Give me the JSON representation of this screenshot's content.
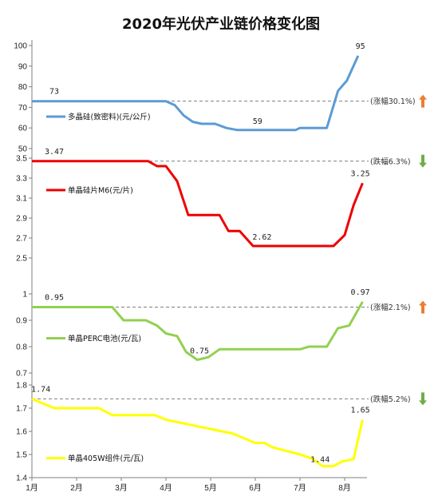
{
  "title": "2020年光伏产业链价格变化图",
  "chart_data": {
    "type": "line",
    "title": "2020年光伏产业链价格变化图",
    "x_ticks": [
      "1月",
      "2月",
      "3月",
      "4月",
      "5月",
      "6月",
      "7月",
      "8月"
    ],
    "x_range": [
      1,
      8.5
    ],
    "panels": [
      {
        "name": "多晶硅(致密料)(元/公斤)",
        "color": "#5b9bd5",
        "ylim": [
          50,
          100
        ],
        "yticks": [
          50,
          60,
          70,
          80,
          90,
          100
        ],
        "ref_value": 73,
        "annotation": "(涨幅30.1%)",
        "direction": "up",
        "labels": [
          {
            "text": "73",
            "x": 1.5,
            "y": 73
          },
          {
            "text": "59",
            "x": 6.05,
            "y": 59
          },
          {
            "text": "95",
            "x": 8.35,
            "y": 95
          }
        ],
        "points": [
          [
            1,
            73
          ],
          [
            1.5,
            73
          ],
          [
            2,
            73
          ],
          [
            2.5,
            73
          ],
          [
            3,
            73
          ],
          [
            3.5,
            73
          ],
          [
            4,
            73
          ],
          [
            4.2,
            71
          ],
          [
            4.4,
            66
          ],
          [
            4.6,
            63
          ],
          [
            4.8,
            62
          ],
          [
            5.1,
            62
          ],
          [
            5.35,
            60
          ],
          [
            5.6,
            59
          ],
          [
            6,
            59
          ],
          [
            6.5,
            59
          ],
          [
            6.9,
            59
          ],
          [
            7,
            60
          ],
          [
            7.3,
            60
          ],
          [
            7.6,
            60
          ],
          [
            7.85,
            78
          ],
          [
            8.05,
            83
          ],
          [
            8.3,
            95
          ]
        ]
      },
      {
        "name": "单晶硅片M6(元/片)",
        "color": "#ee0000",
        "ylim": [
          2.5,
          3.5
        ],
        "yticks": [
          2.5,
          2.7,
          2.9,
          3.1,
          3.3,
          3.5
        ],
        "ref_value": 3.47,
        "annotation": "(跌幅6.3%)",
        "direction": "down",
        "labels": [
          {
            "text": "3.47",
            "x": 1.5,
            "y": 3.47
          },
          {
            "text": "2.62",
            "x": 6.15,
            "y": 2.62
          },
          {
            "text": "3.25",
            "x": 8.35,
            "y": 3.25
          }
        ],
        "points": [
          [
            1,
            3.47
          ],
          [
            1.5,
            3.47
          ],
          [
            2.5,
            3.47
          ],
          [
            3.6,
            3.47
          ],
          [
            3.8,
            3.42
          ],
          [
            4,
            3.42
          ],
          [
            4.25,
            3.27
          ],
          [
            4.5,
            2.93
          ],
          [
            5.2,
            2.93
          ],
          [
            5.4,
            2.77
          ],
          [
            5.65,
            2.77
          ],
          [
            5.95,
            2.62
          ],
          [
            6.5,
            2.62
          ],
          [
            7,
            2.62
          ],
          [
            7.5,
            2.62
          ],
          [
            7.75,
            2.62
          ],
          [
            8,
            2.73
          ],
          [
            8.2,
            3.03
          ],
          [
            8.4,
            3.25
          ]
        ]
      },
      {
        "name": "单晶PERC电池(元/瓦)",
        "color": "#92d050",
        "ylim": [
          0.7,
          1.0
        ],
        "yticks": [
          0.7,
          0.8,
          0.9,
          1.0
        ],
        "ref_value": 0.95,
        "annotation": "(涨幅2.1%)",
        "direction": "up",
        "labels": [
          {
            "text": "0.95",
            "x": 1.5,
            "y": 0.95
          },
          {
            "text": "0.75",
            "x": 4.75,
            "y": 0.75
          },
          {
            "text": "0.97",
            "x": 8.35,
            "y": 0.97
          }
        ],
        "points": [
          [
            1,
            0.95
          ],
          [
            2,
            0.95
          ],
          [
            2.8,
            0.95
          ],
          [
            3.05,
            0.9
          ],
          [
            3.25,
            0.9
          ],
          [
            3.55,
            0.9
          ],
          [
            3.8,
            0.88
          ],
          [
            4,
            0.85
          ],
          [
            4.25,
            0.84
          ],
          [
            4.45,
            0.78
          ],
          [
            4.7,
            0.75
          ],
          [
            4.95,
            0.76
          ],
          [
            5.2,
            0.79
          ],
          [
            6,
            0.79
          ],
          [
            6.5,
            0.79
          ],
          [
            7,
            0.79
          ],
          [
            7.2,
            0.8
          ],
          [
            7.6,
            0.8
          ],
          [
            7.85,
            0.87
          ],
          [
            8.1,
            0.88
          ],
          [
            8.4,
            0.97
          ]
        ]
      },
      {
        "name": "单晶405W组件(元/瓦)",
        "color": "#ffff00",
        "ylim": [
          1.4,
          1.8
        ],
        "yticks": [
          1.4,
          1.5,
          1.6,
          1.7,
          1.8
        ],
        "ref_value": 1.74,
        "annotation": "(跌幅5.2%)",
        "direction": "down",
        "labels": [
          {
            "text": "1.74",
            "x": 1.2,
            "y": 1.74
          },
          {
            "text": "1.44",
            "x": 7.45,
            "y": 1.44
          },
          {
            "text": "1.65",
            "x": 8.35,
            "y": 1.65
          }
        ],
        "points": [
          [
            1,
            1.74
          ],
          [
            1.25,
            1.72
          ],
          [
            1.5,
            1.7
          ],
          [
            2,
            1.7
          ],
          [
            2.5,
            1.7
          ],
          [
            2.8,
            1.67
          ],
          [
            3.2,
            1.67
          ],
          [
            3.5,
            1.67
          ],
          [
            3.75,
            1.67
          ],
          [
            4,
            1.65
          ],
          [
            4.5,
            1.63
          ],
          [
            5,
            1.61
          ],
          [
            5.5,
            1.59
          ],
          [
            5.75,
            1.57
          ],
          [
            6,
            1.55
          ],
          [
            6.2,
            1.55
          ],
          [
            6.4,
            1.53
          ],
          [
            6.6,
            1.52
          ],
          [
            7,
            1.5
          ],
          [
            7.3,
            1.48
          ],
          [
            7.5,
            1.45
          ],
          [
            7.75,
            1.45
          ],
          [
            7.95,
            1.47
          ],
          [
            8.2,
            1.48
          ],
          [
            8.4,
            1.65
          ]
        ]
      }
    ]
  }
}
